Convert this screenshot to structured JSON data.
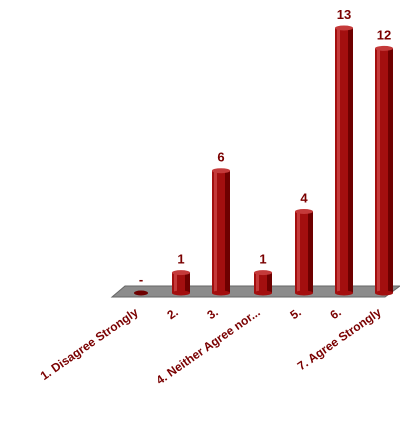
{
  "chart_data": {
    "type": "bar",
    "categories": [
      "1. Disagree Strongly",
      "2.",
      "3.",
      "4. Neither Agree nor...",
      "5.",
      "6.",
      "7. Agree Strongly"
    ],
    "values": [
      0,
      1,
      6,
      1,
      4,
      13,
      12
    ],
    "value_labels": [
      "-",
      "1",
      "6",
      "1",
      "4",
      "13",
      "12"
    ],
    "ylim": [
      0,
      13
    ],
    "grid": false,
    "legend": "none",
    "title": "",
    "xlabel": "",
    "ylabel": "",
    "colors": {
      "bar": "#a30f0f",
      "bar_dark": "#6e0000",
      "bar_light": "#c43a3a",
      "floor": "#8c8c8c",
      "text": "#7a0000"
    }
  }
}
